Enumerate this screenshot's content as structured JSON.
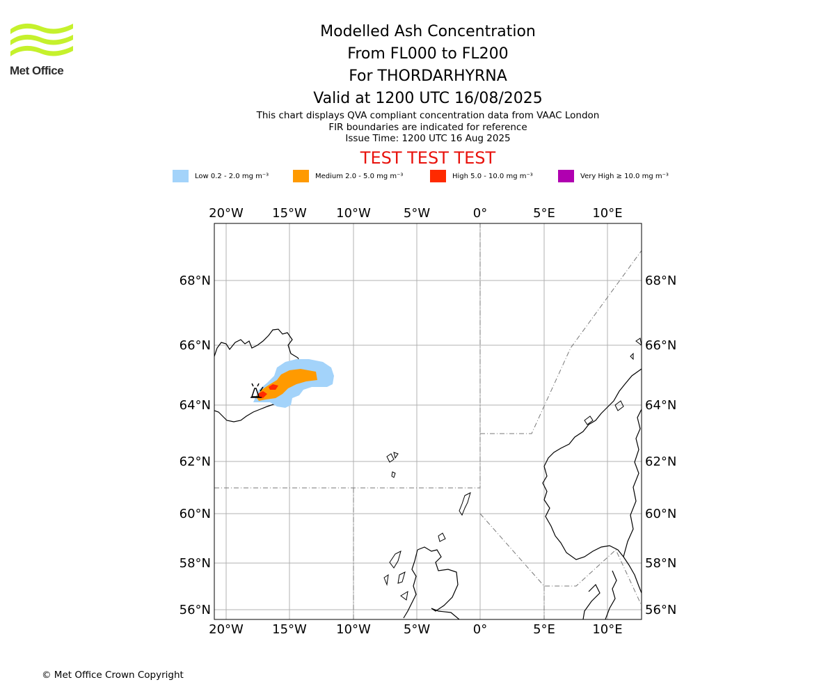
{
  "logo": {
    "text": "Met Office",
    "color": "#c5f12c"
  },
  "title": {
    "line1": "Modelled Ash Concentration",
    "line2": "From FL000 to FL200",
    "line3": "For THORDARHYRNA",
    "line4": "Valid at 1200 UTC 16/08/2025"
  },
  "subtitle": {
    "line1": "This chart displays QVA compliant concentration data from VAAC London",
    "line2": "FIR boundaries are indicated for reference",
    "line3": "Issue Time: 1200 UTC 16 Aug 2025"
  },
  "test_banner": "TEST TEST TEST",
  "legend": [
    {
      "label": "Low 0.2 - 2.0 mg m⁻³",
      "color": "#a3d3fa"
    },
    {
      "label": "Medium 2.0 - 5.0 mg m⁻³",
      "color": "#ff9a00"
    },
    {
      "label": "High 5.0 - 10.0 mg m⁻³",
      "color": "#ff2a00"
    },
    {
      "label": "Very High ≥ 10.0 mg m⁻³",
      "color": "#b000b0"
    }
  ],
  "map": {
    "lon_ticks": [
      "20°W",
      "15°W",
      "10°W",
      "5°W",
      "0°",
      "5°E",
      "10°E"
    ],
    "lat_ticks": [
      "68°N",
      "66°N",
      "64°N",
      "62°N",
      "60°N",
      "58°N",
      "56°N"
    ],
    "lon_range": [
      -21,
      12.5
    ],
    "lat_range": [
      55.7,
      69.8
    ],
    "volcano": {
      "name": "THORDARHYRNA",
      "lon": -17.6,
      "lat": 64.4
    }
  },
  "copyright": "© Met Office Crown Copyright"
}
